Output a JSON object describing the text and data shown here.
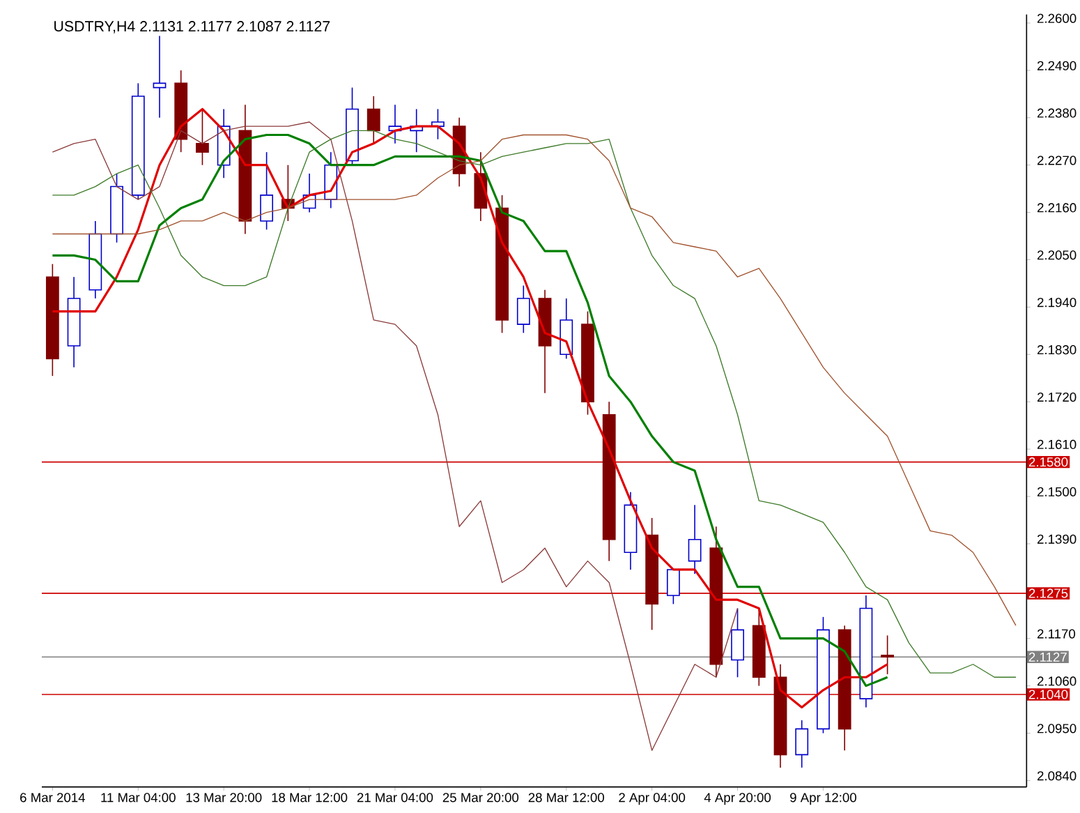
{
  "chart_data": {
    "type": "candlestick",
    "title": "USDTRY,H4  2.1131 2.1177 2.1087 2.1127",
    "categories": [
      "6 Mar 2014",
      null,
      null,
      null,
      "11 Mar 04:00",
      null,
      null,
      null,
      "13 Mar 20:00",
      null,
      null,
      null,
      "18 Mar 12:00",
      null,
      null,
      null,
      "21 Mar 04:00",
      null,
      null,
      null,
      "25 Mar 20:00",
      null,
      null,
      null,
      "28 Mar 12:00",
      null,
      null,
      null,
      "2 Apr 04:00",
      null,
      null,
      null,
      "4 Apr 20:00",
      null,
      null,
      null,
      "9 Apr 12:00",
      null,
      null,
      null,
      null,
      null,
      null,
      null,
      null,
      null
    ],
    "ohlc": [
      [
        2.201,
        2.204,
        2.178,
        2.182
      ],
      [
        2.185,
        2.201,
        2.18,
        2.196
      ],
      [
        2.198,
        2.214,
        2.196,
        2.211
      ],
      [
        2.211,
        2.225,
        2.209,
        2.222
      ],
      [
        2.22,
        2.246,
        2.219,
        2.243
      ],
      [
        2.245,
        2.257,
        2.238,
        2.246
      ],
      [
        2.246,
        2.249,
        2.23,
        2.233
      ],
      [
        2.232,
        2.24,
        2.227,
        2.23
      ],
      [
        2.227,
        2.24,
        2.224,
        2.236
      ],
      [
        2.235,
        2.241,
        2.211,
        2.214
      ],
      [
        2.214,
        2.23,
        2.212,
        2.22
      ],
      [
        2.219,
        2.227,
        2.214,
        2.217
      ],
      [
        2.217,
        2.225,
        2.216,
        2.22
      ],
      [
        2.219,
        2.23,
        2.217,
        2.227
      ],
      [
        2.228,
        2.245,
        2.227,
        2.24
      ],
      [
        2.24,
        2.243,
        2.232,
        2.235
      ],
      [
        2.235,
        2.241,
        2.232,
        2.236
      ],
      [
        2.235,
        2.24,
        2.23,
        2.236
      ],
      [
        2.236,
        2.24,
        2.233,
        2.237
      ],
      [
        2.236,
        2.238,
        2.222,
        2.225
      ],
      [
        2.225,
        2.23,
        2.214,
        2.217
      ],
      [
        2.217,
        2.22,
        2.188,
        2.191
      ],
      [
        2.19,
        2.199,
        2.188,
        2.196
      ],
      [
        2.196,
        2.198,
        2.174,
        2.185
      ],
      [
        2.183,
        2.196,
        2.182,
        2.191
      ],
      [
        2.19,
        2.193,
        2.169,
        2.172
      ],
      [
        2.169,
        2.172,
        2.135,
        2.14
      ],
      [
        2.137,
        2.151,
        2.133,
        2.148
      ],
      [
        2.141,
        2.145,
        2.119,
        2.125
      ],
      [
        2.127,
        2.133,
        2.125,
        2.133
      ],
      [
        2.135,
        2.148,
        2.132,
        2.14
      ],
      [
        2.138,
        2.143,
        2.108,
        2.111
      ],
      [
        2.112,
        2.124,
        2.108,
        2.119
      ],
      [
        2.12,
        2.124,
        2.106,
        2.108
      ],
      [
        2.108,
        2.111,
        2.087,
        2.09
      ],
      [
        2.09,
        2.098,
        2.087,
        2.096
      ],
      [
        2.096,
        2.122,
        2.095,
        2.119
      ],
      [
        2.119,
        2.12,
        2.091,
        2.096
      ],
      [
        2.103,
        2.127,
        2.101,
        2.124
      ],
      [
        2.1131,
        2.1177,
        2.1087,
        2.1127
      ],
      null,
      null,
      null,
      null,
      null,
      null
    ],
    "series": [
      {
        "type": "line",
        "color": "#e00000",
        "values": [
          2.193,
          2.193,
          2.193,
          2.201,
          2.212,
          2.227,
          2.236,
          2.24,
          2.235,
          2.227,
          2.227,
          2.217,
          2.22,
          2.221,
          2.23,
          2.232,
          2.235,
          2.236,
          2.236,
          2.232,
          2.224,
          2.209,
          2.201,
          2.188,
          2.186,
          2.172,
          2.161,
          2.149,
          2.138,
          2.133,
          2.133,
          2.126,
          2.126,
          2.124,
          2.105,
          2.101,
          2.105,
          2.108,
          2.108,
          2.111,
          null,
          null,
          null,
          null,
          null,
          null
        ]
      },
      {
        "type": "line",
        "color": "#008000",
        "values": [
          2.206,
          2.206,
          2.205,
          2.2,
          2.2,
          2.213,
          2.217,
          2.219,
          2.228,
          2.233,
          2.234,
          2.234,
          2.232,
          2.227,
          2.227,
          2.227,
          2.229,
          2.229,
          2.229,
          2.229,
          2.228,
          2.216,
          2.214,
          2.207,
          2.207,
          2.195,
          2.178,
          2.172,
          2.164,
          2.158,
          2.156,
          2.14,
          2.129,
          2.129,
          2.117,
          2.117,
          2.117,
          2.114,
          2.106,
          2.108,
          null,
          null,
          null,
          null,
          null,
          null
        ]
      },
      {
        "type": "line",
        "color": "#8b3a3a",
        "values": [
          2.23,
          2.232,
          2.233,
          2.222,
          2.219,
          2.222,
          2.235,
          2.232,
          2.235,
          2.236,
          2.236,
          2.236,
          2.237,
          2.233,
          2.214,
          2.191,
          2.19,
          2.185,
          2.169,
          2.143,
          2.149,
          2.13,
          2.133,
          2.138,
          2.129,
          2.135,
          2.13,
          2.111,
          2.091,
          2.101,
          2.111,
          2.108,
          2.124,
          null,
          null,
          null,
          null,
          null,
          null,
          null,
          null,
          null,
          null,
          null,
          null,
          null
        ]
      },
      {
        "type": "line",
        "color": "#3d7a28",
        "values": [
          2.22,
          2.22,
          2.222,
          2.225,
          2.227,
          2.217,
          2.206,
          2.201,
          2.199,
          2.199,
          2.201,
          2.217,
          2.23,
          2.233,
          2.235,
          2.235,
          2.233,
          2.232,
          2.23,
          2.228,
          2.227,
          2.229,
          2.23,
          2.231,
          2.232,
          2.232,
          2.233,
          2.217,
          2.206,
          2.199,
          2.196,
          2.185,
          2.169,
          2.149,
          2.148,
          2.146,
          2.144,
          2.137,
          2.129,
          2.126,
          2.116,
          2.109,
          2.109,
          2.111,
          2.108,
          2.108
        ]
      },
      {
        "type": "line",
        "color": "#a0522d",
        "values": [
          2.211,
          2.211,
          2.211,
          2.211,
          2.211,
          2.212,
          2.214,
          2.214,
          2.216,
          2.214,
          2.216,
          2.217,
          2.219,
          2.219,
          2.219,
          2.219,
          2.219,
          2.22,
          2.224,
          2.227,
          2.228,
          2.233,
          2.234,
          2.234,
          2.234,
          2.233,
          2.228,
          2.217,
          2.215,
          2.209,
          2.208,
          2.207,
          2.201,
          2.203,
          2.196,
          2.188,
          2.18,
          2.174,
          2.169,
          2.164,
          2.153,
          2.142,
          2.141,
          2.137,
          2.129,
          2.12
        ]
      }
    ],
    "ylim": [
      2.0825,
      2.262
    ],
    "yticks": [
      {
        "value": 2.084,
        "label": "2.0840"
      },
      {
        "value": 2.095,
        "label": "2.0950"
      },
      {
        "value": 2.106,
        "label": "2.1060"
      },
      {
        "value": 2.117,
        "label": "2.1170"
      },
      {
        "value": 2.139,
        "label": "2.1390"
      },
      {
        "value": 2.15,
        "label": "2.1500"
      },
      {
        "value": 2.161,
        "label": "2.1610"
      },
      {
        "value": 2.172,
        "label": "2.1720"
      },
      {
        "value": 2.183,
        "label": "2.1830"
      },
      {
        "value": 2.194,
        "label": "2.1940"
      },
      {
        "value": 2.205,
        "label": "2.2050"
      },
      {
        "value": 2.216,
        "label": "2.2160"
      },
      {
        "value": 2.227,
        "label": "2.2270"
      },
      {
        "value": 2.238,
        "label": "2.2380"
      },
      {
        "value": 2.249,
        "label": "2.2490"
      },
      {
        "value": 2.26,
        "label": "2.2600"
      }
    ],
    "ref_lines": [
      {
        "axis": "y",
        "value": 2.158,
        "label": "2.1580",
        "color": "#cc0000"
      },
      {
        "axis": "y",
        "value": 2.1275,
        "label": "2.1275",
        "color": "#cc0000"
      },
      {
        "axis": "y",
        "value": 2.1127,
        "label": "2.1127",
        "color": "#808080"
      },
      {
        "axis": "y",
        "value": 2.104,
        "label": "2.1040",
        "color": "#cc0000"
      }
    ]
  }
}
